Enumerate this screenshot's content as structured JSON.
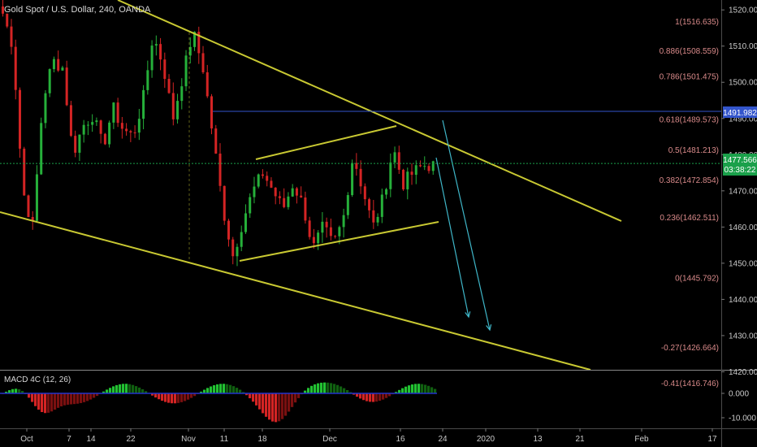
{
  "symbol": {
    "title": "Gold Spot / U.S. Dollar, 240, OANDA"
  },
  "colors": {
    "bull": "#26b03a",
    "bear": "#d42424",
    "trendline": "#c8c832",
    "horizontal_line": "#3355cc",
    "arrow": "#3fb6c8",
    "fib_text": "#d98a8a",
    "price_tag_blue": "#3355cc",
    "price_tag_green": "#1aa04a"
  },
  "price_axis": {
    "ticks": [
      "1520.000",
      "1510.000",
      "1500.000",
      "1490.000",
      "1480.000",
      "1470.000",
      "1460.000",
      "1450.000",
      "1440.000",
      "1430.000",
      "1420.000"
    ],
    "tag_level": "1491.982",
    "tag_current": "1477.566",
    "tag_countdown": "03:38:22"
  },
  "macd": {
    "title": "MACD 4C (12, 26)",
    "ticks": [
      "0.000",
      "-10.000"
    ]
  },
  "time_axis": {
    "labels": [
      "Oct",
      "7",
      "14",
      "22",
      "Nov",
      "11",
      "18",
      "Dec",
      "16",
      "24",
      "2020",
      "13",
      "21",
      "Feb",
      "17"
    ]
  },
  "chart_data": {
    "type": "candlestick",
    "title": "Gold Spot / U.S. Dollar, 240, OANDA",
    "ylim": [
      1413,
      1524
    ],
    "fib_levels": [
      {
        "label": "1(1516.635)",
        "value": 1516.635
      },
      {
        "label": "0.886(1508.559)",
        "value": 1508.559
      },
      {
        "label": "0.786(1501.475)",
        "value": 1501.475
      },
      {
        "label": "0.618(1489.573)",
        "value": 1489.573
      },
      {
        "label": "0.5(1481.213)",
        "value": 1481.213
      },
      {
        "label": "0.382(1472.854)",
        "value": 1472.854
      },
      {
        "label": "0.236(1462.511)",
        "value": 1462.511
      },
      {
        "label": "0(1445.792)",
        "value": 1445.792
      },
      {
        "label": "-0.27(1426.664)",
        "value": 1426.664
      },
      {
        "label": "-0.41(1416.746)",
        "value": 1416.746
      }
    ],
    "horizontal_level": 1491.982,
    "current_price": 1477.566,
    "candle_anchors": [
      [
        1519,
        1503
      ],
      [
        1510,
        1494
      ],
      [
        1470,
        1466
      ],
      [
        1460,
        1462
      ],
      [
        1495,
        1497
      ],
      [
        1506,
        1506
      ],
      [
        1504,
        1500
      ],
      [
        1480,
        1484
      ],
      [
        1488,
        1495
      ],
      [
        1491,
        1487
      ],
      [
        1482,
        1483
      ],
      [
        1493,
        1497
      ],
      [
        1487,
        1483
      ],
      [
        1485,
        1489
      ],
      [
        1495,
        1500
      ],
      [
        1513,
        1510
      ],
      [
        1505,
        1498
      ],
      [
        1490,
        1493
      ],
      [
        1502,
        1512
      ],
      [
        1514,
        1510
      ],
      [
        1504,
        1498
      ],
      [
        1485,
        1488
      ],
      [
        1465,
        1458
      ],
      [
        1452,
        1450
      ],
      [
        1462,
        1465
      ],
      [
        1470,
        1468
      ],
      [
        1475,
        1472
      ],
      [
        1470,
        1463
      ],
      [
        1465,
        1468
      ],
      [
        1472,
        1470
      ],
      [
        1466,
        1460
      ],
      [
        1454,
        1456
      ],
      [
        1460,
        1458
      ],
      [
        1455,
        1459
      ],
      [
        1462,
        1466
      ],
      [
        1480,
        1478
      ],
      [
        1470,
        1474
      ],
      [
        1460,
        1462
      ],
      [
        1468,
        1470
      ],
      [
        1482,
        1478
      ],
      [
        1472,
        1469
      ],
      [
        1475,
        1476
      ],
      [
        1477,
        1479
      ],
      [
        1477,
        1477
      ]
    ],
    "trendlines": [
      {
        "name": "upper-channel",
        "points": [
          [
            0,
            1535
          ],
          [
            128,
            1457
          ]
        ]
      },
      {
        "name": "lower-channel",
        "points": [
          [
            0,
            1461
          ],
          [
            124,
            1413
          ]
        ]
      },
      {
        "name": "flag-top",
        "points": [
          [
            53,
            1478
          ],
          [
            82,
            1488
          ]
        ]
      },
      {
        "name": "flag-bottom",
        "points": [
          [
            49,
            1446
          ],
          [
            90,
            1458
          ]
        ]
      }
    ],
    "projection_arrows": [
      {
        "from": [
          90,
          1476
        ],
        "to": [
          96,
          1429
        ]
      },
      {
        "from": [
          91,
          1488
        ],
        "to": [
          101,
          1424
        ]
      }
    ]
  }
}
